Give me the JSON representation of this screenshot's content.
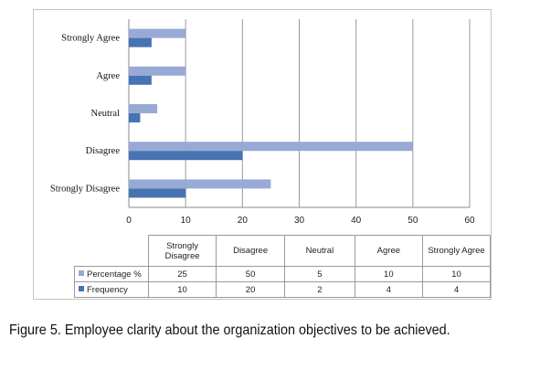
{
  "chart_data": {
    "type": "bar",
    "orientation": "horizontal",
    "categories": [
      "Strongly Agree",
      "Agree",
      "Neutral",
      "Disagree",
      "Strongly Disagree"
    ],
    "series": [
      {
        "name": "Percentage %",
        "color": "#98a9d6",
        "values": [
          10,
          10,
          5,
          50,
          25
        ]
      },
      {
        "name": "Frequency",
        "color": "#4673b2",
        "values": [
          4,
          4,
          2,
          20,
          10
        ]
      }
    ],
    "xlim": [
      0,
      60
    ],
    "xticks": [
      "0",
      "10",
      "20",
      "30",
      "40",
      "50",
      "60"
    ],
    "grid": true,
    "data_table": {
      "header": [
        "Strongly\nDisagree",
        "Disagree",
        "Neutral",
        "Agree",
        "Strongly Agree"
      ],
      "rows": [
        {
          "label": "Percentage %",
          "values": [
            "25",
            "50",
            "5",
            "10",
            "10"
          ]
        },
        {
          "label": "Frequency",
          "values": [
            "10",
            "20",
            "2",
            "4",
            "4"
          ]
        }
      ]
    }
  },
  "caption": {
    "label": "Figure 5.",
    "text": " Employee clarity about the organization objectives to be achieved."
  }
}
